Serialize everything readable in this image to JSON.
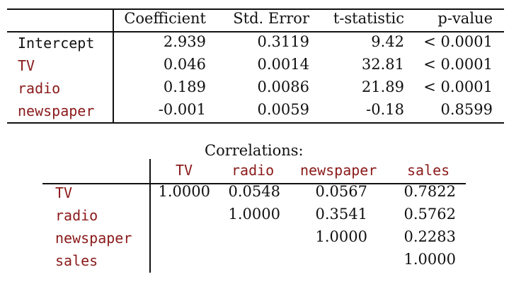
{
  "colors": {
    "accent_red": "#8b1a1a",
    "text": "#111111"
  },
  "regression": {
    "headers": [
      "Coefficient",
      "Std. Error",
      "t-statistic",
      "p-value"
    ],
    "rows": [
      {
        "label": "Intercept",
        "label_color": "black",
        "values": [
          "2.939",
          "0.3119",
          "9.42",
          "< 0.0001"
        ]
      },
      {
        "label": "TV",
        "label_color": "red",
        "values": [
          "0.046",
          "0.0014",
          "32.81",
          "< 0.0001"
        ]
      },
      {
        "label": "radio",
        "label_color": "red",
        "values": [
          "0.189",
          "0.0086",
          "21.89",
          "< 0.0001"
        ]
      },
      {
        "label": "newspaper",
        "label_color": "red",
        "values": [
          "-0.001",
          "0.0059",
          "-0.18",
          "0.8599"
        ]
      }
    ]
  },
  "correlations": {
    "title": "Correlations:",
    "headers": [
      "TV",
      "radio",
      "newspaper",
      "sales"
    ],
    "rows": [
      {
        "label": "TV",
        "values": [
          "1.0000",
          "0.0548",
          "0.0567",
          "0.7822"
        ]
      },
      {
        "label": "radio",
        "values": [
          "",
          "1.0000",
          "0.3541",
          "0.5762"
        ]
      },
      {
        "label": "newspaper",
        "values": [
          "",
          "",
          "1.0000",
          "0.2283"
        ]
      },
      {
        "label": "sales",
        "values": [
          "",
          "",
          "",
          "1.0000"
        ]
      }
    ]
  }
}
